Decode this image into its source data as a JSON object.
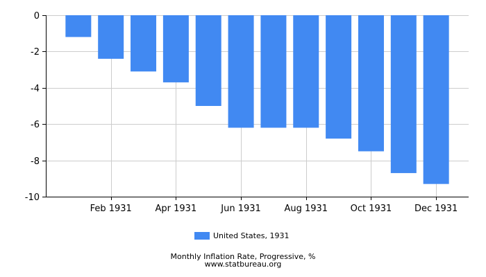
{
  "chart_data": {
    "type": "bar",
    "categories": [
      "Jan 1931",
      "Feb 1931",
      "Mar 1931",
      "Apr 1931",
      "May 1931",
      "Jun 1931",
      "Jul 1931",
      "Aug 1931",
      "Sep 1931",
      "Oct 1931",
      "Nov 1931",
      "Dec 1931"
    ],
    "x_tick_labels": [
      "Feb 1931",
      "Apr 1931",
      "Jun 1931",
      "Aug 1931",
      "Oct 1931",
      "Dec 1931"
    ],
    "series": [
      {
        "name": "United States, 1931",
        "values": [
          -1.2,
          -2.4,
          -3.1,
          -3.7,
          -5.0,
          -6.2,
          -6.2,
          -6.2,
          -6.8,
          -7.5,
          -8.7,
          -9.3
        ],
        "color": "#4189f2"
      }
    ],
    "ylim": [
      -10,
      0
    ],
    "y_ticks": [
      0,
      -2,
      -4,
      -6,
      -8,
      -10
    ],
    "y_tick_labels": [
      "0",
      "-2",
      "-4",
      "-6",
      "-8",
      "-10"
    ],
    "grid": true,
    "legend_position": "bottom",
    "title": "Monthly Inflation Rate, Progressive, %",
    "source": "www.statbureau.org"
  }
}
